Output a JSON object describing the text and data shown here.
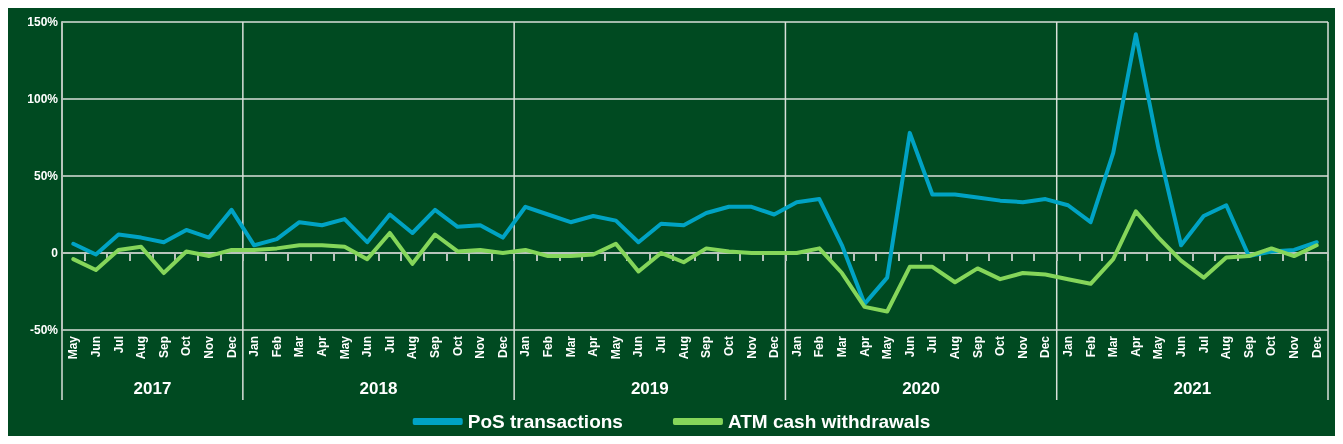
{
  "chart_data": {
    "type": "line",
    "categories": [
      "May",
      "Jun",
      "Jul",
      "Aug",
      "Sep",
      "Oct",
      "Nov",
      "Dec",
      "Jan",
      "Feb",
      "Mar",
      "Apr",
      "May",
      "Jun",
      "Jul",
      "Aug",
      "Sep",
      "Oct",
      "Nov",
      "Dec",
      "Jan",
      "Feb",
      "Mar",
      "Apr",
      "May",
      "Jun",
      "Jul",
      "Aug",
      "Sep",
      "Oct",
      "Nov",
      "Dec",
      "Jan",
      "Feb",
      "Mar",
      "Apr",
      "May",
      "Jun",
      "Jul",
      "Aug",
      "Sep",
      "Oct",
      "Nov",
      "Dec",
      "Jan",
      "Feb",
      "Mar",
      "Apr",
      "May",
      "Jun",
      "Jul",
      "Aug",
      "Sep",
      "Oct",
      "Nov",
      "Dec"
    ],
    "series": [
      {
        "name": "PoS transactions",
        "color": "#00a3c4",
        "values": [
          6,
          -1,
          12,
          10,
          7,
          15,
          10,
          28,
          5,
          9,
          20,
          18,
          22,
          7,
          25,
          13,
          28,
          17,
          18,
          10,
          30,
          25,
          20,
          24,
          21,
          7,
          19,
          18,
          26,
          30,
          30,
          25,
          33,
          35,
          5,
          -33,
          -16,
          78,
          38,
          38,
          36,
          34,
          33,
          35,
          31,
          20,
          65,
          142,
          68,
          5,
          24,
          31,
          -2,
          1,
          2,
          7
        ]
      },
      {
        "name": "ATM cash withdrawals",
        "color": "#85d65a",
        "values": [
          -4,
          -11,
          2,
          4,
          -13,
          1,
          -2,
          2,
          2,
          3,
          5,
          5,
          4,
          -4,
          13,
          -7,
          12,
          1,
          2,
          0,
          2,
          -2,
          -2,
          -1,
          6,
          -12,
          0,
          -6,
          3,
          1,
          0,
          0,
          0,
          3,
          -13,
          -35,
          -38,
          -9,
          -9,
          -19,
          -10,
          -17,
          -13,
          -14,
          -17,
          -20,
          -4,
          27,
          10,
          -5,
          -16,
          -3,
          -2,
          3,
          -2,
          5
        ]
      }
    ],
    "ylim": [
      -50,
      150
    ],
    "yticks": [
      {
        "value": -50,
        "label": "-50%"
      },
      0,
      {
        "value": 50,
        "label": "50%"
      },
      {
        "value": 100,
        "label": "100%"
      },
      {
        "value": 150,
        "label": "150%"
      }
    ],
    "annotations": [
      "2017",
      "2018",
      "2019",
      "2020",
      "2021"
    ],
    "grid": "y",
    "legend": "bottom",
    "marker": "none",
    "line_style": "solid"
  }
}
